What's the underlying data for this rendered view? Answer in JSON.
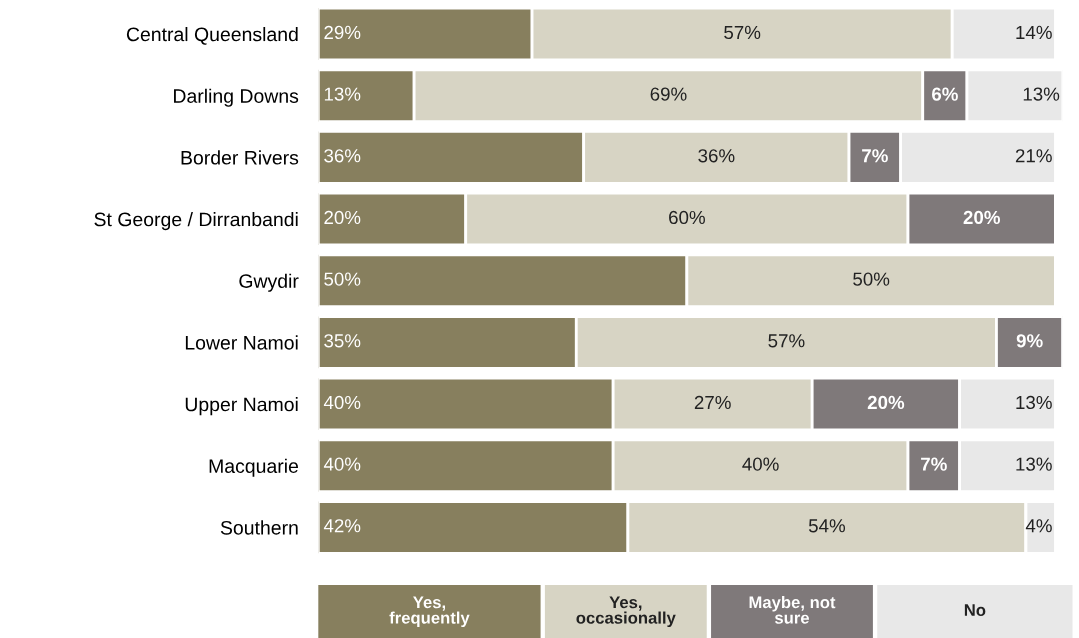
{
  "chart_data": {
    "type": "bar",
    "orientation": "horizontal",
    "stacked": true,
    "legend": "bottom",
    "grid": false,
    "tick_labels": "y",
    "categories": [
      "Central Queensland",
      "Darling Downs",
      "Border Rivers",
      "St George / Dirranbandi",
      "Gwydir",
      "Lower Namoi",
      "Upper Namoi",
      "Macquarie",
      "Southern"
    ],
    "series": [
      {
        "name": "Yes,\nfrequently",
        "color": "#877f5e",
        "values": [
          29,
          13,
          36,
          20,
          50,
          35,
          40,
          40,
          42
        ],
        "value_labels": [
          "29%",
          "13%",
          "36%",
          "20%",
          "50%",
          "35%",
          "40%",
          "40%",
          "42%"
        ]
      },
      {
        "name": "Yes,\noccasionally",
        "color": "#d7d4c4",
        "values": [
          57,
          69,
          36,
          60,
          50,
          57,
          27,
          40,
          54
        ],
        "value_labels": [
          "57%",
          "69%",
          "36%",
          "60%",
          "50%",
          "57%",
          "27%",
          "40%",
          "54%"
        ]
      },
      {
        "name": "Maybe, not\nsure",
        "color": "#7f797a",
        "values": [
          null,
          6,
          7,
          20,
          null,
          9,
          20,
          7,
          null
        ],
        "value_labels": [
          null,
          "6%",
          "7%",
          "20%",
          null,
          "9%",
          "20%",
          "7%",
          null
        ]
      },
      {
        "name": "No",
        "color": "#e8e8e8",
        "values": [
          14,
          13,
          21,
          null,
          null,
          null,
          13,
          13,
          4
        ],
        "value_labels": [
          "14%",
          "13%",
          "21%",
          null,
          null,
          null,
          "13%",
          "13%",
          "4%"
        ]
      }
    ]
  }
}
